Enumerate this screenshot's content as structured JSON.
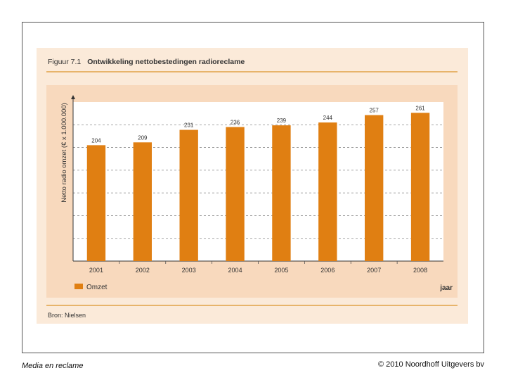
{
  "figure": {
    "number": "Figuur 7.1",
    "title": "Ontwikkeling nettobestedingen radioreclame",
    "source": "Bron: Nielsen"
  },
  "footer": {
    "left": "Media en reclame",
    "right": "© 2010 Noordhoff Uitgevers bv"
  },
  "colors": {
    "bar": "#e07f12",
    "panel": "#fbead9",
    "plot_bg": "#ffffff",
    "frame": "#f8d9bd"
  },
  "chart_data": {
    "type": "bar",
    "categories": [
      "2001",
      "2002",
      "2003",
      "2004",
      "2005",
      "2006",
      "2007",
      "2008"
    ],
    "series": [
      {
        "name": "Omzet",
        "values": [
          204,
          209,
          231,
          236,
          239,
          244,
          257,
          261
        ]
      }
    ],
    "ylabel": "Netto radio omzet (€ x 1.000.000)",
    "xlabel": "jaar",
    "ylim": [
      0,
      280
    ],
    "grid": true,
    "legend": "bottom-left",
    "data_labels": true
  }
}
